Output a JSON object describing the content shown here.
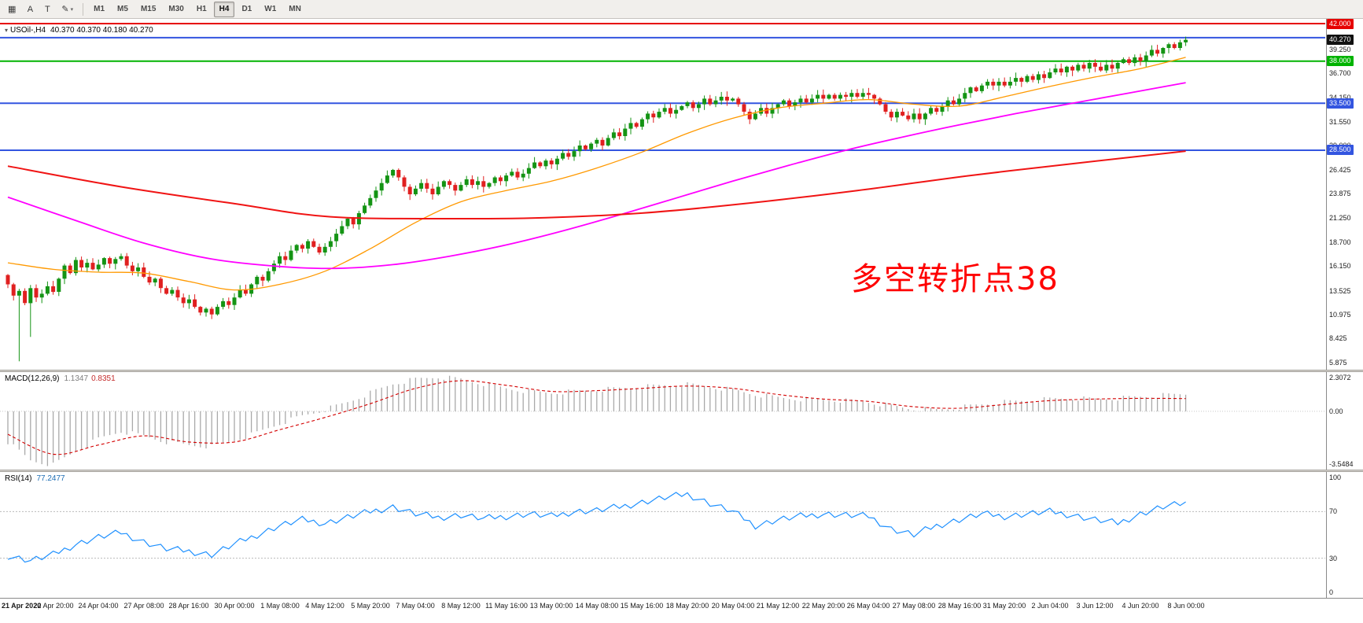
{
  "icons": {
    "symbol_marker": "▾"
  },
  "toolbar": {
    "tools": [
      {
        "name": "chart-window-button",
        "glyph": "▦"
      },
      {
        "name": "text-label-button",
        "glyph": "A"
      },
      {
        "name": "text-tool-button",
        "glyph": "T"
      },
      {
        "name": "draw-tools-button",
        "glyph": "✎",
        "caret": true
      }
    ],
    "timeframes": [
      {
        "label": "M1"
      },
      {
        "label": "M5"
      },
      {
        "label": "M15"
      },
      {
        "label": "M30"
      },
      {
        "label": "H1"
      },
      {
        "label": "H4",
        "active": true
      },
      {
        "label": "D1"
      },
      {
        "label": "W1"
      },
      {
        "label": "MN"
      }
    ]
  },
  "chart_data": {
    "type": "candlestick",
    "bars": 209,
    "x_label_every": 8,
    "x_labels": [
      "21 Apr 2020",
      "22 Apr 20:00",
      "24 Apr 04:00",
      "27 Apr 08:00",
      "28 Apr 16:00",
      "30 Apr 00:00",
      "1 May 08:00",
      "4 May 12:00",
      "5 May 20:00",
      "7 May 04:00",
      "8 May 12:00",
      "11 May 16:00",
      "13 May 00:00",
      "14 May 08:00",
      "15 May 16:00",
      "18 May 20:00",
      "20 May 04:00",
      "21 May 12:00",
      "22 May 20:00",
      "26 May 04:00",
      "27 May 08:00",
      "28 May 16:00",
      "31 May 20:00",
      "2 Jun 04:00",
      "3 Jun 12:00",
      "4 Jun 20:00",
      "8 Jun 00:00"
    ],
    "colors": {
      "up": "#149414",
      "down": "#e02020"
    },
    "price": {
      "symbol_title": "USOil-,H4",
      "ohlc_text": "40.370 40.370 40.180 40.270",
      "ylim": [
        5.1,
        42.5
      ],
      "first_open": 15.2,
      "closes": [
        14.2,
        13.0,
        13.5,
        12.2,
        13.8,
        12.8,
        13.2,
        14.0,
        13.4,
        14.8,
        16.2,
        15.4,
        16.8,
        16.0,
        16.5,
        15.8,
        16.3,
        17.0,
        16.4,
        16.9,
        17.2,
        16.2,
        15.6,
        16.0,
        15.0,
        14.4,
        14.8,
        13.8,
        13.2,
        13.6,
        12.8,
        12.2,
        12.6,
        11.8,
        11.2,
        11.6,
        11.0,
        11.8,
        12.4,
        12.0,
        12.8,
        13.6,
        13.2,
        14.2,
        15.0,
        14.6,
        15.6,
        16.4,
        17.2,
        16.8,
        17.8,
        18.4,
        18.0,
        18.8,
        18.2,
        17.6,
        18.2,
        18.8,
        19.6,
        20.4,
        21.2,
        20.6,
        21.8,
        22.6,
        23.4,
        24.2,
        25.0,
        25.8,
        26.4,
        25.6,
        24.6,
        23.8,
        24.4,
        25.0,
        24.4,
        23.8,
        24.6,
        25.2,
        24.8,
        24.2,
        24.8,
        25.4,
        24.8,
        25.2,
        24.6,
        25.0,
        25.6,
        25.2,
        25.8,
        26.2,
        25.6,
        26.0,
        26.6,
        27.2,
        26.8,
        27.4,
        27.0,
        27.6,
        28.2,
        27.8,
        28.4,
        29.0,
        28.6,
        29.2,
        29.6,
        29.0,
        29.8,
        30.4,
        30.0,
        30.8,
        31.4,
        31.0,
        31.8,
        32.4,
        32.0,
        32.6,
        33.0,
        32.4,
        32.8,
        33.2,
        33.6,
        33.0,
        33.4,
        34.0,
        33.4,
        33.8,
        34.2,
        33.8,
        34.0,
        33.4,
        32.6,
        31.8,
        32.4,
        33.0,
        32.4,
        33.0,
        33.4,
        33.8,
        33.2,
        33.6,
        34.0,
        33.6,
        34.0,
        34.4,
        34.0,
        34.4,
        34.0,
        34.4,
        34.2,
        34.6,
        34.2,
        34.6,
        34.4,
        34.0,
        33.4,
        32.6,
        32.0,
        32.6,
        32.2,
        31.8,
        32.4,
        31.8,
        32.4,
        33.0,
        32.6,
        33.2,
        33.8,
        33.4,
        34.0,
        34.6,
        35.2,
        34.8,
        35.4,
        35.8,
        35.4,
        35.8,
        35.4,
        35.8,
        36.2,
        35.8,
        36.4,
        36.0,
        36.6,
        36.2,
        36.8,
        37.2,
        36.8,
        37.4,
        37.0,
        37.6,
        37.2,
        37.8,
        37.4,
        37.0,
        37.6,
        37.2,
        37.8,
        38.2,
        37.8,
        38.4,
        38.0,
        38.6,
        39.2,
        38.8,
        39.4,
        39.8,
        39.4,
        40.0,
        40.27
      ],
      "special_lows": {
        "2": 6.0,
        "4": 8.6,
        "36": 10.5
      },
      "axis_labels": [
        "39.250",
        "36.700",
        "34.150",
        "31.550",
        "29.000",
        "26.425",
        "23.875",
        "21.250",
        "18.700",
        "16.150",
        "13.525",
        "10.975",
        "8.425",
        "5.875"
      ],
      "hlines": [
        {
          "price": 42.0,
          "label": "42.000",
          "color": "#e60000",
          "width": 2
        },
        {
          "price": 40.5,
          "label": "",
          "color": "#3355e0",
          "width": 2
        },
        {
          "price": 38.0,
          "label": "38.000",
          "color": "#00b300",
          "width": 2
        },
        {
          "price": 33.5,
          "label": "33.500",
          "color": "#3355e0",
          "width": 2
        },
        {
          "price": 28.5,
          "label": "28.500",
          "color": "#3355e0",
          "width": 2
        }
      ],
      "current": {
        "price": 40.27,
        "label": "40.270",
        "badge_color": "#111111"
      },
      "ma": [
        {
          "name": "ma-fast-line",
          "color": "#ff9900",
          "width": 1.3,
          "points": [
            [
              0,
              16.5
            ],
            [
              8,
              15.8
            ],
            [
              16,
              15.5
            ],
            [
              24,
              15.4
            ],
            [
              32,
              14.5
            ],
            [
              40,
              13.6
            ],
            [
              48,
              14.2
            ],
            [
              56,
              15.6
            ],
            [
              64,
              18.0
            ],
            [
              72,
              20.8
            ],
            [
              80,
              23.0
            ],
            [
              88,
              24.2
            ],
            [
              96,
              25.2
            ],
            [
              104,
              26.6
            ],
            [
              112,
              28.3
            ],
            [
              120,
              30.3
            ],
            [
              128,
              31.9
            ],
            [
              136,
              33.0
            ],
            [
              144,
              33.5
            ],
            [
              152,
              33.9
            ],
            [
              160,
              33.4
            ],
            [
              168,
              33.2
            ],
            [
              176,
              34.2
            ],
            [
              184,
              35.3
            ],
            [
              192,
              36.3
            ],
            [
              200,
              37.2
            ],
            [
              208,
              38.4
            ]
          ]
        },
        {
          "name": "ma-mid-line",
          "color": "#ff00ff",
          "width": 1.8,
          "points": [
            [
              0,
              23.5
            ],
            [
              12,
              21.0
            ],
            [
              24,
              18.6
            ],
            [
              36,
              16.9
            ],
            [
              48,
              16.1
            ],
            [
              58,
              15.9
            ],
            [
              68,
              16.3
            ],
            [
              78,
              17.2
            ],
            [
              88,
              18.4
            ],
            [
              98,
              19.9
            ],
            [
              108,
              21.6
            ],
            [
              118,
              23.4
            ],
            [
              128,
              25.2
            ],
            [
              138,
              26.9
            ],
            [
              148,
              28.5
            ],
            [
              158,
              29.9
            ],
            [
              168,
              31.2
            ],
            [
              178,
              32.4
            ],
            [
              188,
              33.5
            ],
            [
              198,
              34.6
            ],
            [
              208,
              35.7
            ]
          ]
        },
        {
          "name": "ma-slow-line",
          "color": "#f01414",
          "width": 2,
          "points": [
            [
              0,
              26.8
            ],
            [
              20,
              24.6
            ],
            [
              40,
              22.8
            ],
            [
              57,
              21.4
            ],
            [
              80,
              21.2
            ],
            [
              95,
              21.3
            ],
            [
              112,
              21.8
            ],
            [
              130,
              22.8
            ],
            [
              150,
              24.2
            ],
            [
              170,
              25.8
            ],
            [
              190,
              27.2
            ],
            [
              208,
              28.4
            ]
          ]
        }
      ],
      "annotation": {
        "text": "多空转折点38",
        "color": "#ff0000"
      }
    },
    "macd": {
      "label": "MACD(12,26,9)",
      "value_macd": "1.1347",
      "value_signal": "0.8351",
      "ylim": [
        -3.5484,
        2.3072
      ],
      "axis_labels": [
        "2.3072",
        "0.00",
        "-3.5484"
      ],
      "hist": [
        [
          0,
          -2.0
        ],
        [
          4,
          -3.2
        ],
        [
          8,
          -3.5
        ],
        [
          12,
          -2.6
        ],
        [
          16,
          -1.8
        ],
        [
          20,
          -1.3
        ],
        [
          24,
          -1.6
        ],
        [
          28,
          -2.0
        ],
        [
          32,
          -2.2
        ],
        [
          36,
          -2.3
        ],
        [
          40,
          -1.9
        ],
        [
          44,
          -1.4
        ],
        [
          48,
          -0.8
        ],
        [
          52,
          -0.3
        ],
        [
          56,
          0.1
        ],
        [
          60,
          0.6
        ],
        [
          64,
          1.2
        ],
        [
          68,
          1.8
        ],
        [
          72,
          2.1
        ],
        [
          76,
          2.25
        ],
        [
          80,
          2.1
        ],
        [
          84,
          1.8
        ],
        [
          88,
          1.5
        ],
        [
          92,
          1.3
        ],
        [
          96,
          1.2
        ],
        [
          100,
          1.3
        ],
        [
          104,
          1.4
        ],
        [
          108,
          1.5
        ],
        [
          112,
          1.6
        ],
        [
          116,
          1.7
        ],
        [
          120,
          1.75
        ],
        [
          124,
          1.6
        ],
        [
          128,
          1.4
        ],
        [
          132,
          1.1
        ],
        [
          136,
          0.9
        ],
        [
          140,
          0.8
        ],
        [
          144,
          0.75
        ],
        [
          148,
          0.7
        ],
        [
          152,
          0.6
        ],
        [
          156,
          0.35
        ],
        [
          160,
          0.15
        ],
        [
          164,
          0.1
        ],
        [
          168,
          0.25
        ],
        [
          172,
          0.45
        ],
        [
          176,
          0.6
        ],
        [
          180,
          0.7
        ],
        [
          184,
          0.8
        ],
        [
          188,
          0.85
        ],
        [
          192,
          0.8
        ],
        [
          196,
          0.85
        ],
        [
          200,
          0.95
        ],
        [
          204,
          1.05
        ],
        [
          208,
          1.1347
        ]
      ],
      "signal": [
        [
          0,
          -1.5
        ],
        [
          8,
          -2.8
        ],
        [
          16,
          -2.2
        ],
        [
          24,
          -1.6
        ],
        [
          32,
          -2.0
        ],
        [
          40,
          -2.0
        ],
        [
          48,
          -1.2
        ],
        [
          56,
          -0.4
        ],
        [
          64,
          0.5
        ],
        [
          72,
          1.5
        ],
        [
          80,
          2.0
        ],
        [
          88,
          1.7
        ],
        [
          96,
          1.3
        ],
        [
          104,
          1.35
        ],
        [
          112,
          1.5
        ],
        [
          120,
          1.65
        ],
        [
          128,
          1.5
        ],
        [
          136,
          1.1
        ],
        [
          144,
          0.8
        ],
        [
          152,
          0.65
        ],
        [
          160,
          0.3
        ],
        [
          168,
          0.2
        ],
        [
          176,
          0.45
        ],
        [
          184,
          0.7
        ],
        [
          192,
          0.8
        ],
        [
          200,
          0.85
        ],
        [
          208,
          0.8351
        ]
      ]
    },
    "rsi": {
      "label": "RSI(14)",
      "value": "77.2477",
      "ylim": [
        0,
        100
      ],
      "levels": [
        70,
        30
      ],
      "axis_labels": [
        "100",
        "70",
        "30",
        "0"
      ],
      "line": [
        [
          0,
          32
        ],
        [
          4,
          28
        ],
        [
          8,
          33
        ],
        [
          12,
          42
        ],
        [
          16,
          48
        ],
        [
          20,
          52
        ],
        [
          24,
          44
        ],
        [
          28,
          38
        ],
        [
          32,
          36
        ],
        [
          36,
          33
        ],
        [
          40,
          42
        ],
        [
          44,
          50
        ],
        [
          48,
          58
        ],
        [
          52,
          63
        ],
        [
          56,
          60
        ],
        [
          60,
          65
        ],
        [
          64,
          70
        ],
        [
          68,
          74
        ],
        [
          72,
          68
        ],
        [
          76,
          65
        ],
        [
          80,
          67
        ],
        [
          84,
          64
        ],
        [
          88,
          66
        ],
        [
          92,
          68
        ],
        [
          96,
          66
        ],
        [
          100,
          70
        ],
        [
          104,
          71
        ],
        [
          108,
          74
        ],
        [
          112,
          78
        ],
        [
          116,
          82
        ],
        [
          120,
          85
        ],
        [
          124,
          77
        ],
        [
          128,
          70
        ],
        [
          132,
          58
        ],
        [
          136,
          63
        ],
        [
          140,
          66
        ],
        [
          144,
          68
        ],
        [
          148,
          67
        ],
        [
          152,
          66
        ],
        [
          156,
          55
        ],
        [
          160,
          50
        ],
        [
          164,
          58
        ],
        [
          168,
          63
        ],
        [
          172,
          68
        ],
        [
          176,
          66
        ],
        [
          180,
          68
        ],
        [
          184,
          70
        ],
        [
          188,
          67
        ],
        [
          192,
          63
        ],
        [
          196,
          60
        ],
        [
          200,
          68
        ],
        [
          204,
          74
        ],
        [
          208,
          77.2
        ]
      ]
    }
  }
}
